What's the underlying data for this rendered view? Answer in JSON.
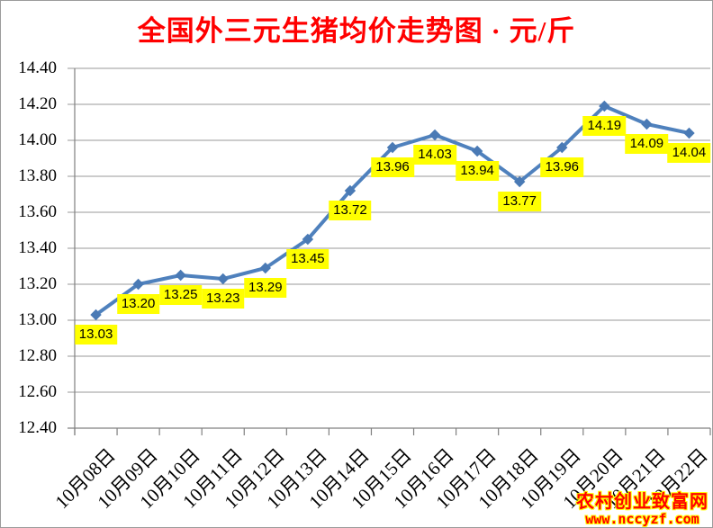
{
  "title": "全国外三元生猪均价走势图 · 元/斤",
  "watermark": {
    "site_name": "农村创业致富网",
    "site_url": "www.nccyzf.com"
  },
  "colors": {
    "title": "#ff0000",
    "series_line": "#4f81bd",
    "marker": "#4a7ab5",
    "data_label_bg": "#ffff00",
    "data_label_text": "#000000",
    "gridline": "#999999",
    "axis": "#808080",
    "watermark_fill": "#ff0000",
    "watermark_outline": "#ffff00"
  },
  "chart_data": {
    "type": "line",
    "title": "全国外三元生猪均价走势图 · 元/斤",
    "unit": "元/斤",
    "categories": [
      "10月08日",
      "10月09日",
      "10月10日",
      "10月11日",
      "10月12日",
      "10月13日",
      "10月14日",
      "10月15日",
      "10月16日",
      "10月17日",
      "10月18日",
      "10月19日",
      "10月20日",
      "10月21日",
      "10月22日"
    ],
    "values": [
      13.03,
      13.2,
      13.25,
      13.23,
      13.29,
      13.45,
      13.72,
      13.96,
      14.03,
      13.94,
      13.77,
      13.96,
      14.19,
      14.09,
      14.04
    ],
    "data_labels": [
      "13.03",
      "13.20",
      "13.25",
      "13.23",
      "13.29",
      "13.45",
      "13.72",
      "13.96",
      "14.03",
      "13.94",
      "13.77",
      "13.96",
      "14.19",
      "14.09",
      "14.04"
    ],
    "ylim": [
      12.4,
      14.4
    ],
    "ytick_step": 0.2,
    "ytick_labels": [
      "14.40",
      "14.20",
      "14.00",
      "13.80",
      "13.60",
      "13.40",
      "13.20",
      "13.00",
      "12.80",
      "12.60",
      "12.40"
    ],
    "grid": true,
    "legend": "none",
    "marker": "diamond"
  }
}
